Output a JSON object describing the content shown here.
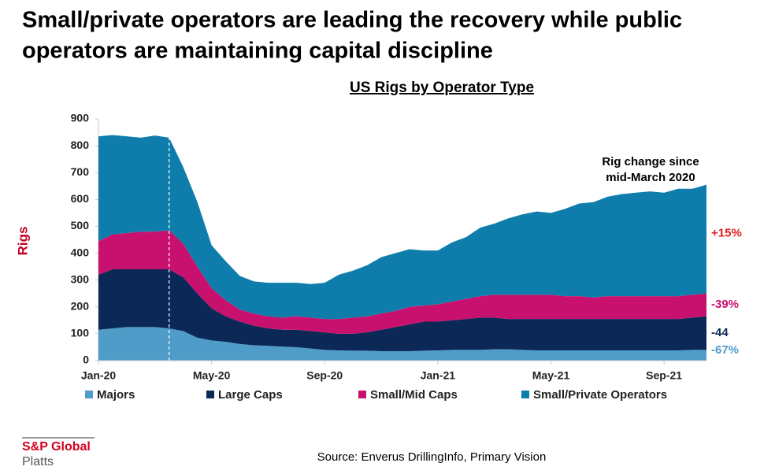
{
  "chart_data": {
    "type": "stacked_area",
    "title": [
      "Small/private operators are leading the recovery while public",
      "operators are maintaining capital discipline"
    ],
    "subtitle": "US Rigs by Operator Type",
    "y_label": "Rigs",
    "annotation": [
      "Rig change since",
      "mid-March 2020"
    ],
    "categories": [
      "Jan-20",
      null,
      null,
      null,
      null,
      null,
      null,
      null,
      "May-20",
      null,
      null,
      null,
      null,
      null,
      null,
      null,
      "Sep-20",
      null,
      null,
      null,
      null,
      null,
      null,
      null,
      "Jan-21",
      null,
      null,
      null,
      null,
      null,
      null,
      null,
      "May-21",
      null,
      null,
      null,
      null,
      null,
      null,
      null,
      "Sep-21",
      null,
      null,
      null
    ],
    "ylim": [
      0,
      900
    ],
    "yticks": [
      0,
      100,
      200,
      300,
      400,
      500,
      600,
      700,
      800,
      900
    ],
    "grid": false,
    "series": [
      {
        "name": "Majors",
        "color": "#4f9cc9",
        "change": "-67%",
        "values": [
          115,
          120,
          125,
          125,
          125,
          120,
          110,
          85,
          75,
          70,
          62,
          57,
          55,
          52,
          50,
          45,
          40,
          38,
          37,
          37,
          35,
          35,
          35,
          37,
          38,
          40,
          40,
          40,
          42,
          42,
          40,
          38,
          38,
          38,
          38,
          38,
          38,
          38,
          38,
          38,
          38,
          38,
          40,
          40
        ]
      },
      {
        "name": "Large Caps",
        "color": "#0b2857",
        "change": "-44",
        "values": [
          205,
          220,
          215,
          215,
          215,
          220,
          200,
          165,
          120,
          95,
          83,
          73,
          65,
          63,
          65,
          65,
          65,
          62,
          63,
          68,
          80,
          90,
          100,
          108,
          107,
          110,
          115,
          120,
          118,
          113,
          115,
          117,
          117,
          117,
          117,
          117,
          117,
          117,
          117,
          117,
          117,
          117,
          120,
          125
        ]
      },
      {
        "name": "Small/Mid Caps",
        "color": "#c8106e",
        "change": "-39%",
        "values": [
          125,
          130,
          135,
          140,
          140,
          145,
          125,
          100,
          75,
          60,
          45,
          45,
          45,
          45,
          50,
          50,
          50,
          55,
          60,
          60,
          60,
          60,
          65,
          60,
          65,
          70,
          75,
          80,
          85,
          90,
          90,
          90,
          90,
          85,
          85,
          80,
          85,
          85,
          85,
          85,
          85,
          85,
          85,
          85
        ]
      },
      {
        "name": "Small/Private Operators",
        "color": "#0e7dab",
        "change": "+15%",
        "change_color": "#e0201f",
        "values": [
          390,
          370,
          360,
          350,
          358,
          345,
          285,
          240,
          160,
          145,
          125,
          120,
          125,
          130,
          125,
          125,
          135,
          165,
          175,
          190,
          210,
          215,
          215,
          205,
          200,
          220,
          230,
          255,
          265,
          285,
          300,
          310,
          305,
          325,
          345,
          355,
          370,
          380,
          385,
          390,
          385,
          400,
          395,
          405
        ]
      }
    ],
    "source": "Source: Enverus DrillingInfo, Primary Vision",
    "logo": [
      "S&P Global",
      "Platts"
    ]
  }
}
